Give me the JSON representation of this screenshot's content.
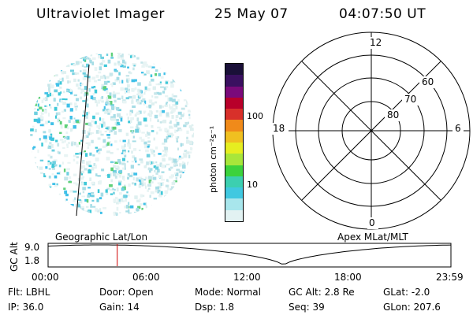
{
  "header": {
    "title": "Ultraviolet Imager",
    "date": "25 May 07",
    "time": "04:07:50 UT"
  },
  "colorbar": {
    "unit_label": "photon cm⁻²s⁻¹",
    "tick_labels": [
      "100",
      "10"
    ],
    "colors": [
      "#1a1038",
      "#3a1060",
      "#7a0a7a",
      "#b8002a",
      "#d8302a",
      "#f08a1a",
      "#f0c020",
      "#e6ee20",
      "#a8e63a",
      "#3cd23c",
      "#3ccfb0",
      "#40c8e0",
      "#a8e6ec",
      "#e2f2f2"
    ]
  },
  "geo_panel": {
    "label": "Geographic Lat/Lon"
  },
  "polar_panel": {
    "label": "Apex MLat/MLT",
    "mlt_labels": {
      "top": "12",
      "left": "18",
      "right": "6",
      "bottom": "0"
    },
    "lat_labels": [
      "60",
      "70",
      "80"
    ]
  },
  "timeline": {
    "axis_label": "GC Alt",
    "y_ticks": [
      "9.0",
      "1.8"
    ],
    "x_ticks": [
      "00:00",
      "06:00",
      "12:00",
      "18:00",
      "23:59"
    ],
    "current_marker_color": "#d00000"
  },
  "footer": {
    "flt": "Flt: LBHL",
    "door": "Door: Open",
    "mode": "Mode: Normal",
    "gc_alt": "GC Alt: 2.8 Re",
    "glat": "GLat:  -2.0",
    "ip": "IP: 36.0",
    "gain": "Gain: 14",
    "dsp": "Dsp:    1.8",
    "seq": "Seq: 39",
    "glon": "GLon: 207.6"
  }
}
